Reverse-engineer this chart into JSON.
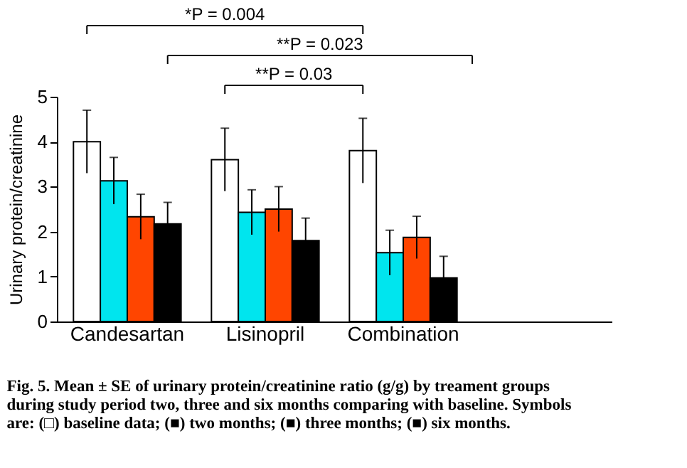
{
  "chart_data": {
    "type": "bar",
    "ylabel": "Urinary protein/creatinine",
    "categories": [
      "Candesartan",
      "Lisinopril",
      "Combination",
      null
    ],
    "series": [
      {
        "color": "#ffffff",
        "values": [
          4.0,
          3.6,
          3.8,
          null
        ],
        "errors": [
          0.7,
          0.7,
          0.72,
          null
        ]
      },
      {
        "color": "#00e5ee",
        "values": [
          3.13,
          2.43,
          1.53,
          null
        ],
        "errors": [
          0.52,
          0.5,
          0.5,
          null
        ]
      },
      {
        "color": "#ff4500",
        "values": [
          2.33,
          2.5,
          1.87,
          null
        ],
        "errors": [
          0.5,
          0.5,
          0.47,
          null
        ]
      },
      {
        "color": "#000000",
        "values": [
          2.17,
          1.8,
          0.97,
          null
        ],
        "errors": [
          0.48,
          0.5,
          0.48,
          null
        ]
      }
    ],
    "ylim": [
      0,
      5
    ],
    "yticks": [
      0,
      1,
      2,
      3,
      4,
      5
    ],
    "grid": false,
    "legend": false,
    "annotations": [
      "*P = 0.004",
      "**P = 0.023",
      "**P = 0.03",
      "Fig. 5. Mean ± SE of urinary protein/creatinine ratio (g/g) by treament groups during study period two, three and six months comparing with baseline. Symbols are: (□) baseline data; (■) two months; (■) three months; (■) six months."
    ]
  }
}
